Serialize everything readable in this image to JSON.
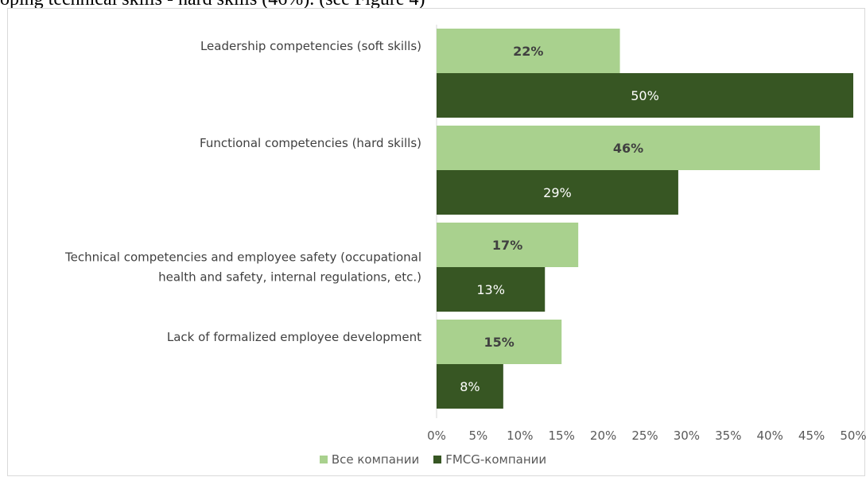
{
  "header_text": "oping technical skills - hard skills (46%). (see Figure 4)",
  "chart_data": {
    "type": "bar",
    "orientation": "horizontal",
    "categories": [
      [
        "Leadership competencies (soft skills)"
      ],
      [
        "Functional competencies (hard skills)"
      ],
      [
        "Technical competencies and employee safety (occupational",
        "health and safety, internal regulations, etc.)"
      ],
      [
        "Lack of formalized employee development"
      ]
    ],
    "series": [
      {
        "name": "Все компании",
        "values": [
          22,
          46,
          17,
          15
        ],
        "color": "#a9d18e"
      },
      {
        "name": "FMCG-компании",
        "values": [
          50,
          29,
          13,
          8
        ],
        "color": "#375623"
      }
    ],
    "x_ticks": [
      "0%",
      "5%",
      "10%",
      "15%",
      "20%",
      "25%",
      "30%",
      "35%",
      "40%",
      "45%",
      "50%"
    ],
    "xlim": [
      0,
      50
    ],
    "value_suffix": "%",
    "legend_position": "bottom",
    "grid": false
  }
}
